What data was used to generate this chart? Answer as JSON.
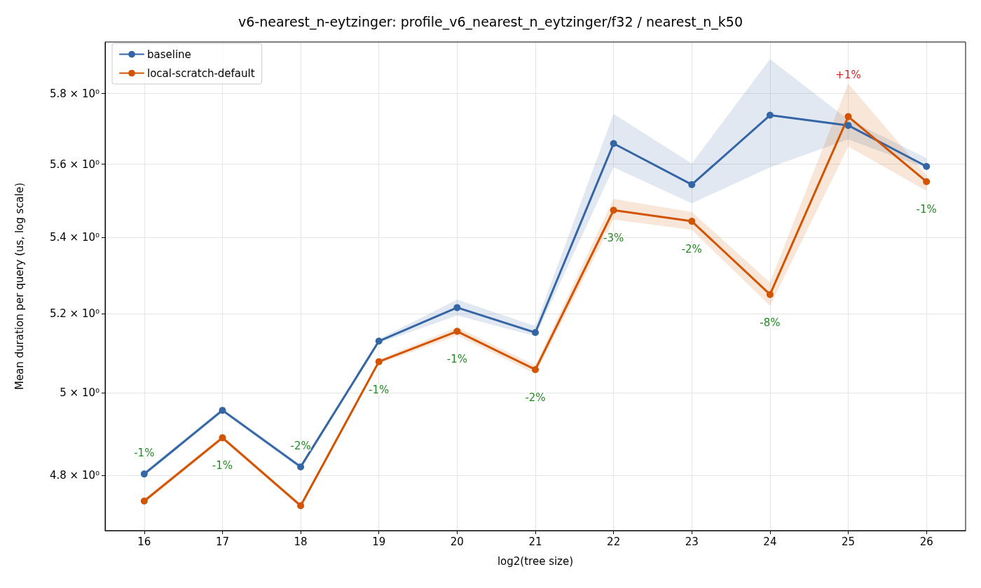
{
  "chart_data": {
    "type": "line",
    "title": "v6-nearest_n-eytzinger: profile_v6_nearest_n_eytzinger/f32 / nearest_n_k50",
    "xlabel": "log2(tree size)",
    "ylabel": "Mean duration per query (us, log scale)",
    "x": [
      16,
      17,
      18,
      19,
      20,
      21,
      22,
      23,
      24,
      25,
      26
    ],
    "series": [
      {
        "name": "baseline",
        "color": "#3465a4",
        "values": [
          4.803,
          4.957,
          4.82,
          5.13,
          5.216,
          5.152,
          5.658,
          5.544,
          5.738,
          5.709,
          5.594
        ],
        "lower": [
          4.798,
          4.952,
          4.815,
          5.125,
          5.196,
          5.143,
          5.592,
          5.493,
          5.592,
          5.67,
          5.589
        ],
        "upper": [
          4.808,
          4.962,
          4.825,
          5.135,
          5.236,
          5.168,
          5.741,
          5.602,
          5.899,
          5.725,
          5.617
        ]
      },
      {
        "name": "local-scratch-default",
        "color": "#d35400",
        "values": [
          4.739,
          4.89,
          4.728,
          5.078,
          5.155,
          5.058,
          5.474,
          5.444,
          5.25,
          5.734,
          5.552
        ],
        "lower": [
          4.734,
          4.885,
          4.723,
          5.073,
          5.145,
          5.048,
          5.449,
          5.421,
          5.221,
          5.65,
          5.527
        ],
        "upper": [
          4.744,
          4.895,
          4.733,
          5.083,
          5.165,
          5.068,
          5.504,
          5.469,
          5.281,
          5.828,
          5.569
        ]
      }
    ],
    "xlim": [
      15.5,
      26.5
    ],
    "xticks": [
      16,
      17,
      18,
      19,
      20,
      21,
      22,
      23,
      24,
      25,
      26
    ],
    "ylim": [
      4.67,
      5.95
    ],
    "log": "y",
    "yticks": [
      {
        "value": 4.8,
        "label": "4.8 × 10⁰"
      },
      {
        "value": 5,
        "label": "5 × 10⁰"
      },
      {
        "value": 5.2,
        "label": "5.2 × 10⁰"
      },
      {
        "value": 5.4,
        "label": "5.4 × 10⁰"
      },
      {
        "value": 5.6,
        "label": "5.6 × 10⁰"
      },
      {
        "value": 5.8,
        "label": "5.8 × 10⁰"
      }
    ],
    "grid": true,
    "legend": "top left",
    "marker": "circle",
    "line_style": "solid",
    "annotations": [
      {
        "text": "-1%",
        "x": 16
      },
      {
        "text": "-1%",
        "x": 17
      },
      {
        "text": "-2%",
        "x": 18
      },
      {
        "text": "-1%",
        "x": 19
      },
      {
        "text": "-1%",
        "x": 20
      },
      {
        "text": "-2%",
        "x": 21
      },
      {
        "text": "-3%",
        "x": 22
      },
      {
        "text": "-2%",
        "x": 23
      },
      {
        "text": "-8%",
        "x": 24
      },
      {
        "text": "+1%",
        "x": 25
      },
      {
        "text": "-1%",
        "x": 26
      }
    ]
  }
}
